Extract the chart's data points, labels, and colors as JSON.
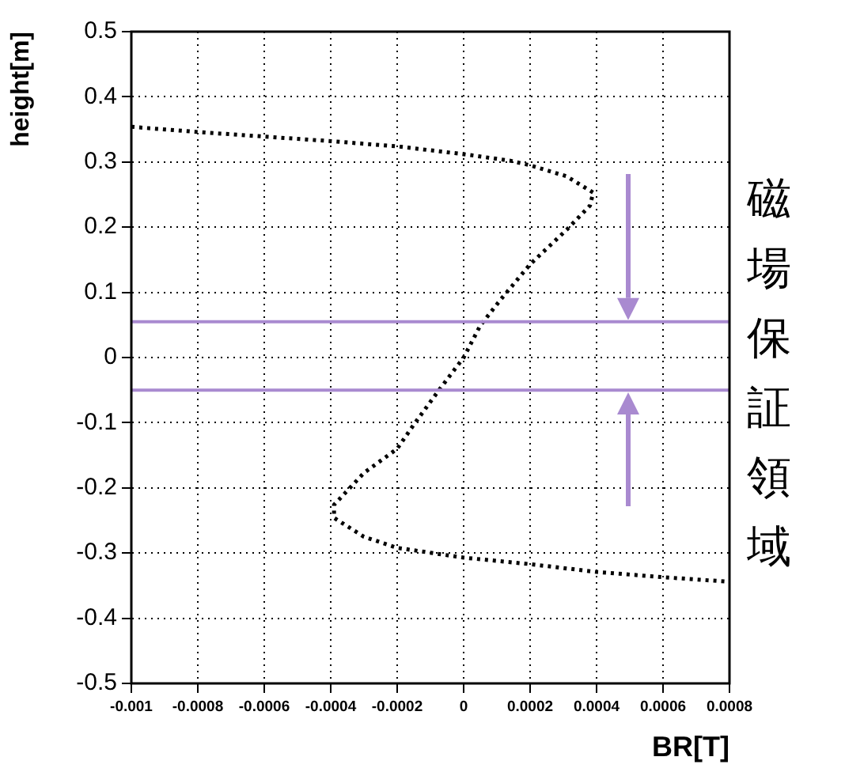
{
  "chart_data": {
    "type": "line",
    "xlabel": "BR[T]",
    "ylabel": "height[m]",
    "x": [
      -0.001,
      -0.0008,
      -0.0006,
      -0.0004,
      -0.0002,
      0,
      0.00014,
      0.0002,
      0.00031,
      0.00039,
      0.00038,
      0.00031,
      0.0002,
      0.00011,
      5e-05,
      0,
      -7e-05,
      -0.00015,
      -0.0002,
      -0.0003,
      -0.00039,
      -0.00039,
      -0.0003,
      -0.0002,
      0,
      0.0002,
      0.0004,
      0.0006,
      0.0008
    ],
    "values": [
      0.354,
      0.346,
      0.339,
      0.332,
      0.324,
      0.312,
      0.302,
      0.295,
      0.278,
      0.253,
      0.233,
      0.196,
      0.143,
      0.088,
      0.049,
      0,
      -0.047,
      -0.103,
      -0.14,
      -0.177,
      -0.226,
      -0.246,
      -0.275,
      -0.292,
      -0.307,
      -0.317,
      -0.329,
      -0.337,
      -0.344
    ],
    "color": "#000000",
    "line_style": "dotted",
    "marker": "none",
    "xlim": [
      -0.001,
      0.0008
    ],
    "xticks": [
      -0.001,
      -0.0008,
      -0.0006,
      -0.0004,
      -0.0002,
      0,
      0.0002,
      0.0004,
      0.0006,
      0.0008
    ],
    "ylim": [
      -0.5,
      0.5
    ],
    "yticks": [
      -0.5,
      -0.4,
      -0.3,
      -0.2,
      -0.1,
      0,
      0.1,
      0.2,
      0.3,
      0.4,
      0.5
    ],
    "grid": true,
    "ref_lines": [
      {
        "axis": "y",
        "value": 0.055,
        "color": "#a98ad0",
        "line_style": "solid"
      },
      {
        "axis": "y",
        "value": -0.05,
        "color": "#a98ad0",
        "line_style": "solid"
      }
    ],
    "annotations": [
      "磁場保証領域"
    ]
  }
}
